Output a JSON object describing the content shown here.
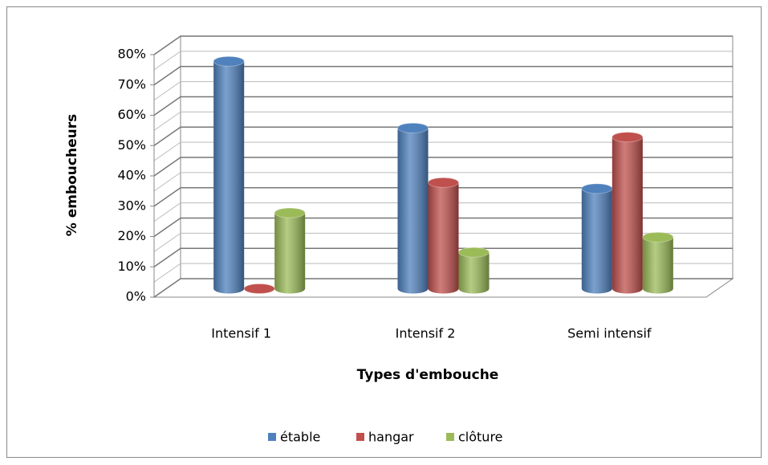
{
  "chart_data": {
    "type": "bar3d",
    "xlabel": "Types d'embouche",
    "ylabel": "% emboucheurs",
    "categories": [
      "Intensif 1",
      "Intensif 2",
      "Semi intensif"
    ],
    "series": [
      {
        "name": "étable",
        "color": "#4f81bd",
        "values": [
          75,
          53,
          33
        ]
      },
      {
        "name": "hangar",
        "color": "#c0504d",
        "values": [
          0,
          35,
          50
        ]
      },
      {
        "name": "clôture",
        "color": "#9bbb59",
        "values": [
          25,
          12,
          17
        ]
      }
    ],
    "ylim": [
      0,
      80
    ],
    "yticks": [
      {
        "value": 0,
        "label": "0%"
      },
      {
        "value": 10,
        "label": "10%"
      },
      {
        "value": 20,
        "label": "20%"
      },
      {
        "value": 30,
        "label": "30%"
      },
      {
        "value": 40,
        "label": "40%"
      },
      {
        "value": 50,
        "label": "50%"
      },
      {
        "value": 60,
        "label": "60%"
      },
      {
        "value": 70,
        "label": "70%"
      },
      {
        "value": 80,
        "label": "80%"
      }
    ],
    "grid": true,
    "legend": "bottom"
  }
}
